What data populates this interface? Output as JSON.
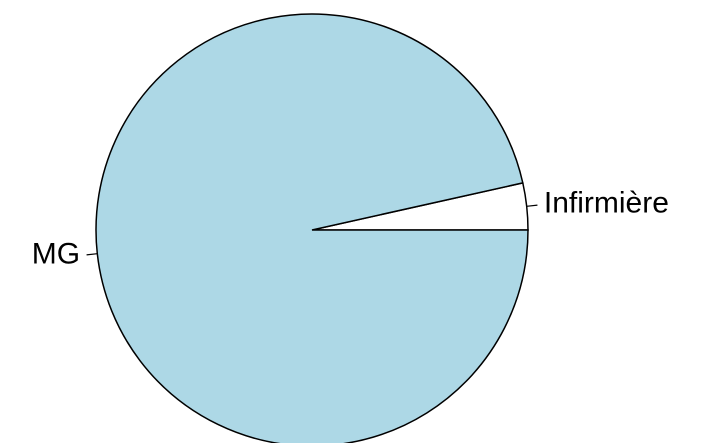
{
  "chart_data": {
    "type": "pie",
    "categories": [
      "Infirmière",
      "MG"
    ],
    "values": [
      3.5,
      96.5
    ],
    "colors": [
      "#ffffff",
      "#add8e6"
    ]
  }
}
